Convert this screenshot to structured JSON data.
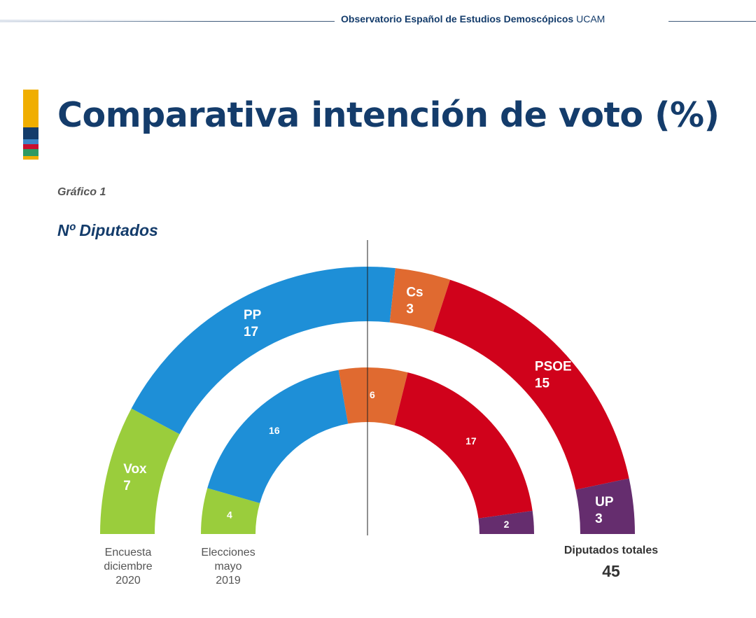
{
  "header": {
    "organization": "Observatorio Español de Estudios Demoscópicos",
    "university": "UCAM"
  },
  "accent_colors": [
    "#f0ae00",
    "#143c6b",
    "#3d86c6",
    "#c8102e",
    "#2f9a62"
  ],
  "title": "Comparativa intención de voto (%)",
  "graph_label": "Gráfico 1",
  "chart_data": {
    "type": "hemicycle",
    "title": "Nº Diputados",
    "total_seats": 45,
    "total_label": "Diputados totales",
    "series": [
      {
        "name": "Encuesta diciembre 2020",
        "label_lines": [
          "Encuesta",
          "diciembre",
          "2020"
        ],
        "ring": "outer",
        "parties": [
          {
            "party": "Vox",
            "seats": 7,
            "color": "#9acd3c"
          },
          {
            "party": "PP",
            "seats": 17,
            "color": "#1e8fd7"
          },
          {
            "party": "Cs",
            "seats": 3,
            "color": "#e06a30"
          },
          {
            "party": "PSOE",
            "seats": 15,
            "color": "#d0021b"
          },
          {
            "party": "UP",
            "seats": 3,
            "color": "#652d6e"
          }
        ]
      },
      {
        "name": "Elecciones mayo 2019",
        "label_lines": [
          "Elecciones",
          "mayo",
          "2019"
        ],
        "ring": "inner",
        "parties": [
          {
            "party": "Vox",
            "seats": 4,
            "color": "#9acd3c"
          },
          {
            "party": "PP",
            "seats": 16,
            "color": "#1e8fd7"
          },
          {
            "party": "Cs",
            "seats": 6,
            "color": "#e06a30"
          },
          {
            "party": "PSOE",
            "seats": 17,
            "color": "#d0021b"
          },
          {
            "party": "UP",
            "seats": 2,
            "color": "#652d6e"
          }
        ]
      }
    ]
  }
}
